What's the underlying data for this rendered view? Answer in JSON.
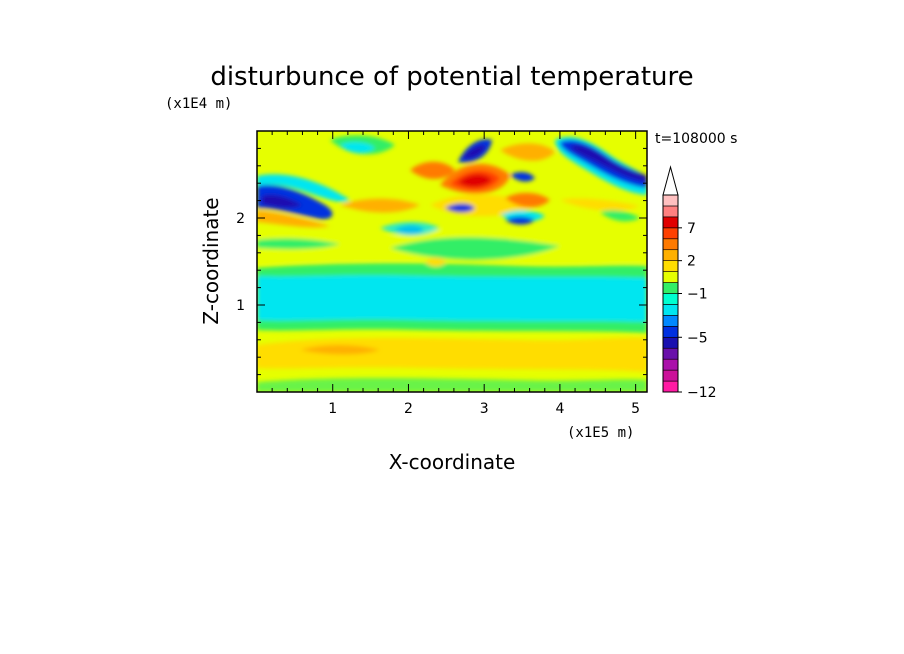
{
  "chart_data": {
    "type": "heatmap",
    "title": "disturbunce of potential temperature",
    "xlabel": "X-coordinate",
    "ylabel": "Z-coordinate",
    "x_unit": "(x1E5 m)",
    "y_unit": "(x1E4 m)",
    "time_label": "t=108000 s",
    "xlim": [
      0,
      5.15
    ],
    "ylim": [
      0,
      3.0
    ],
    "x_ticks": [
      1,
      2,
      3,
      4,
      5
    ],
    "y_ticks": [
      1,
      2
    ],
    "colorbar": {
      "levels": [
        -12,
        -11,
        -9,
        -7,
        -6,
        -5,
        -4,
        -3,
        -2,
        -1,
        0,
        1,
        2,
        3,
        5,
        7,
        9,
        11
      ],
      "colors": [
        "#ff1aa3",
        "#cc1199",
        "#aa10aa",
        "#6a10aa",
        "#1a10b0",
        "#0030e0",
        "#0088ff",
        "#00e6f0",
        "#00ffd0",
        "#33ee66",
        "#e6ff00",
        "#ffdd00",
        "#ffb000",
        "#ff7a00",
        "#ff4000",
        "#e00000",
        "#ff8080",
        "#ffc0c0"
      ],
      "tick_labels": [
        "7",
        "2",
        "−1",
        "−5",
        "−12"
      ],
      "tick_values": [
        7,
        2,
        -1,
        -5,
        -12
      ],
      "extend": "max"
    }
  }
}
